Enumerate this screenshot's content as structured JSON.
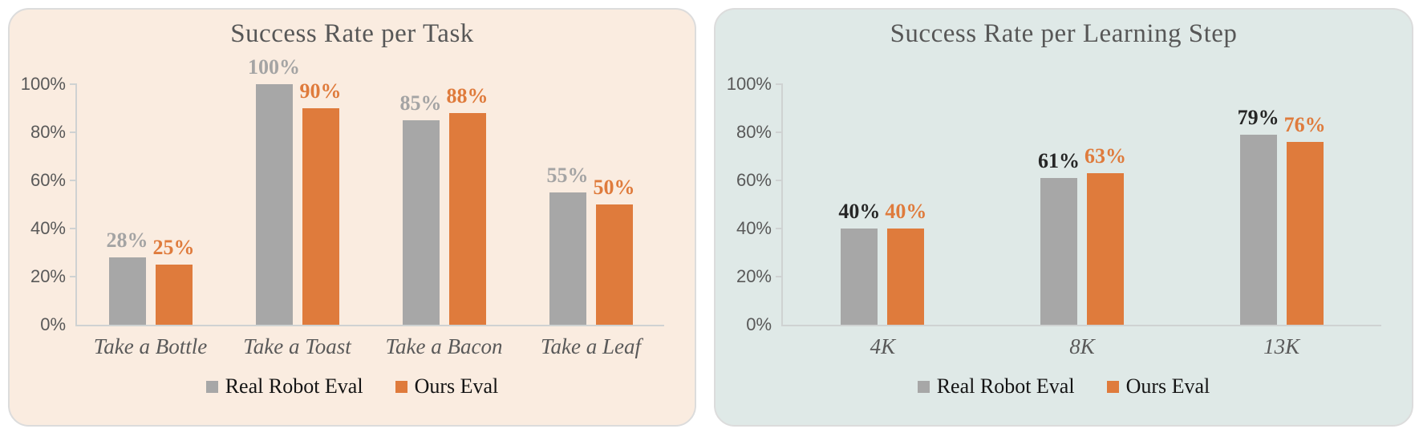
{
  "page": {
    "background": "#ffffff"
  },
  "chart_data": [
    {
      "type": "bar",
      "title": "Success Rate per Task",
      "panel_background": "#faece0",
      "categories": [
        "Take a Bottle",
        "Take a Toast",
        "Take a Bacon",
        "Take a Leaf"
      ],
      "series": [
        {
          "name": "Real Robot Eval",
          "color": "#a7a7a7",
          "label_color": "#a4a4a4",
          "values": [
            28,
            100,
            85,
            55
          ]
        },
        {
          "name": "Ours Eval",
          "color": "#df7b3c",
          "label_color": "#df7b3c",
          "values": [
            25,
            90,
            88,
            50
          ]
        }
      ],
      "value_suffix": "%",
      "ylim": [
        0,
        100
      ],
      "y_ticks": [
        "0%",
        "20%",
        "40%",
        "60%",
        "80%",
        "100%"
      ],
      "grid": false,
      "legend_position": "bottom"
    },
    {
      "type": "bar",
      "title": "Success Rate per Learning Step",
      "panel_background": "#dfe9e7",
      "categories": [
        "4K",
        "8K",
        "13K"
      ],
      "series": [
        {
          "name": "Real Robot Eval",
          "color": "#a7a7a7",
          "label_color": "#262626",
          "values": [
            40,
            61,
            79
          ]
        },
        {
          "name": "Ours Eval",
          "color": "#df7b3c",
          "label_color": "#df7b3c",
          "values": [
            40,
            63,
            76
          ]
        }
      ],
      "value_suffix": "%",
      "ylim": [
        0,
        100
      ],
      "y_ticks": [
        "0%",
        "20%",
        "40%",
        "60%",
        "80%",
        "100%"
      ],
      "grid": false,
      "legend_position": "bottom"
    }
  ]
}
